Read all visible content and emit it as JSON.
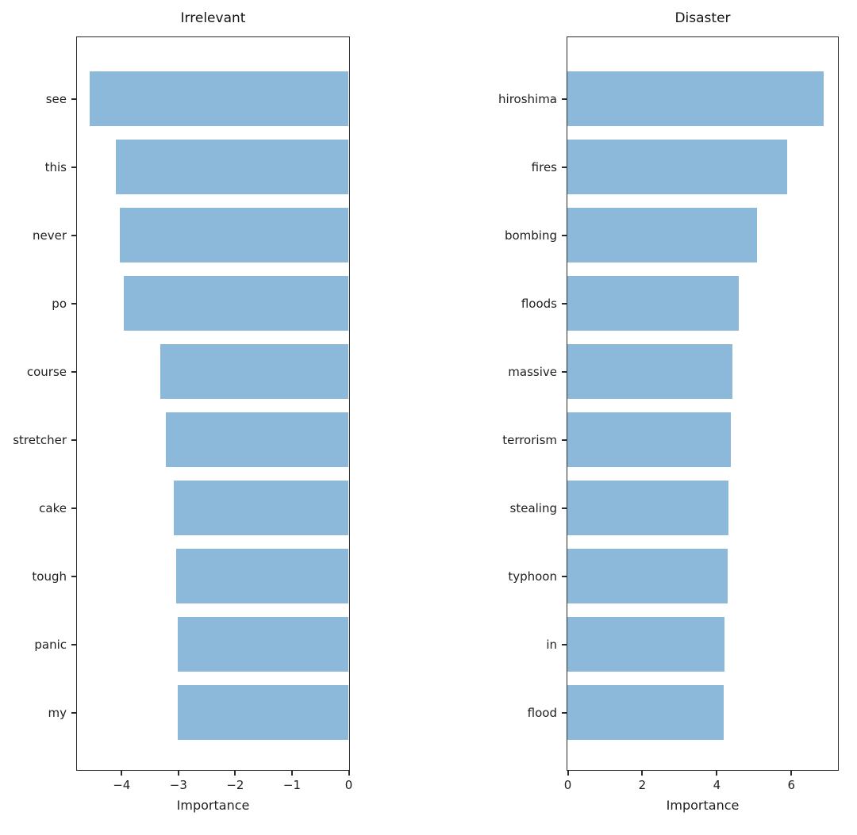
{
  "figure": {
    "background": "#ffffff",
    "bar_color": "#8cb9da",
    "spine_color": "#2b2b2b"
  },
  "chart_data": [
    {
      "type": "bar",
      "orientation": "horizontal",
      "title": "Irrelevant",
      "xlabel": "Importance",
      "categories": [
        "see",
        "this",
        "never",
        "po",
        "course",
        "stretcher",
        "cake",
        "tough",
        "panic",
        "my"
      ],
      "values": [
        -4.55,
        -4.1,
        -4.03,
        -3.95,
        -3.31,
        -3.21,
        -3.07,
        -3.03,
        -3.01,
        -3.0
      ],
      "xlim": [
        -4.78,
        0
      ],
      "xticks": [
        -4,
        -3,
        -2,
        -1,
        0
      ],
      "grid": false,
      "legend": null,
      "bar_color": "#8cb9da"
    },
    {
      "type": "bar",
      "orientation": "horizontal",
      "title": "Disaster",
      "xlabel": "Importance",
      "categories": [
        "hiroshima",
        "fires",
        "bombing",
        "floods",
        "massive",
        "terrorism",
        "stealing",
        "typhoon",
        "in",
        "flood"
      ],
      "values": [
        6.88,
        5.89,
        5.08,
        4.6,
        4.43,
        4.39,
        4.32,
        4.3,
        4.22,
        4.2
      ],
      "xlim": [
        0,
        7.24
      ],
      "xticks": [
        0,
        2,
        4,
        6
      ],
      "grid": false,
      "legend": null,
      "bar_color": "#8cb9da"
    }
  ]
}
